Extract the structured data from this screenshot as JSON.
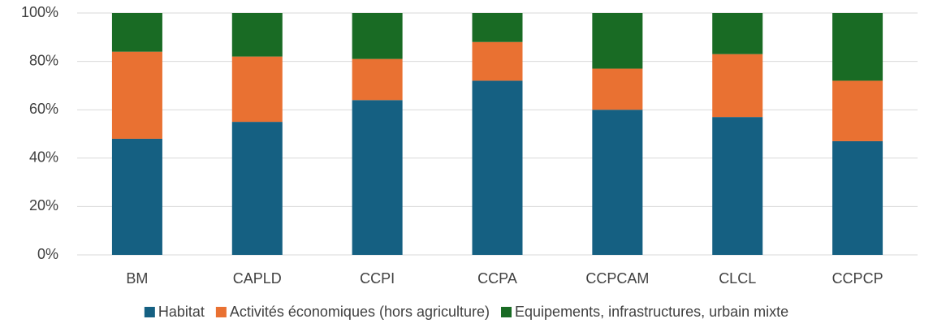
{
  "chart_data": {
    "type": "stacked_bar_100",
    "categories": [
      "BM",
      "CAPLD",
      "CCPI",
      "CCPA",
      "CCPCAM",
      "CLCL",
      "CCPCP"
    ],
    "series": [
      {
        "name": "Habitat",
        "color": "#156082",
        "values": [
          48,
          55,
          64,
          72,
          60,
          57,
          47
        ]
      },
      {
        "name": "Activités économiques (hors agriculture)",
        "color": "#e97132",
        "values": [
          36,
          27,
          17,
          16,
          17,
          26,
          25
        ]
      },
      {
        "name": "Equipements, infrastructures, urbain mixte",
        "color": "#196b24",
        "values": [
          16,
          18,
          19,
          12,
          23,
          17,
          28
        ]
      }
    ],
    "ylim": [
      0,
      100
    ],
    "yticks": [
      {
        "value": 0,
        "label": "0%"
      },
      {
        "value": 20,
        "label": "20%"
      },
      {
        "value": 40,
        "label": "40%"
      },
      {
        "value": 60,
        "label": "60%"
      },
      {
        "value": 80,
        "label": "80%"
      },
      {
        "value": 100,
        "label": "100%"
      }
    ],
    "grid": true,
    "legend": "bottom"
  }
}
